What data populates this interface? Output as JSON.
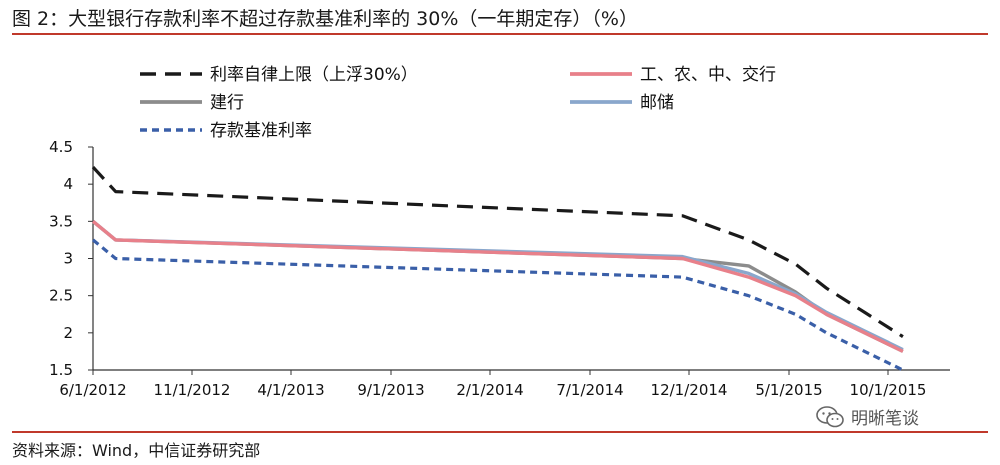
{
  "figure": {
    "title": "图 2：大型银行存款利率不超过存款基准利率的 30%（一年期定存）（%）",
    "source": "资料来源：Wind，中信证券研究部",
    "watermark": "明晰笔谈",
    "watermark_icon": "wechat-icon"
  },
  "chart_data": {
    "type": "line",
    "title": "",
    "xlabel": "",
    "ylabel": "",
    "x_ticks": [
      "6/1/2012",
      "11/1/2012",
      "4/1/2013",
      "9/1/2013",
      "2/1/2014",
      "7/1/2014",
      "12/1/2014",
      "5/1/2015",
      "10/1/2015"
    ],
    "y_ticks": [
      "1.5",
      "2",
      "2.5",
      "3",
      "3.5",
      "4",
      "4.5"
    ],
    "ylim": [
      1.5,
      4.5
    ],
    "xlim": [
      "2012-06-01",
      "2015-12-01"
    ],
    "grid": false,
    "legend_position": "top",
    "series": [
      {
        "name": "利率自律上限（上浮30%）",
        "color": "#1a1a1a",
        "style": "long-dash",
        "points": [
          [
            "2012-06-01",
            4.23
          ],
          [
            "2012-07-06",
            3.9
          ],
          [
            "2014-11-21",
            3.575
          ],
          [
            "2015-03-01",
            3.25
          ],
          [
            "2015-05-11",
            2.925
          ],
          [
            "2015-06-28",
            2.6
          ],
          [
            "2015-08-26",
            2.275
          ],
          [
            "2015-10-24",
            1.95
          ]
        ]
      },
      {
        "name": "工、农、中、交行",
        "color": "#e8808a",
        "style": "solid",
        "points": [
          [
            "2012-06-01",
            3.5
          ],
          [
            "2012-07-06",
            3.25
          ],
          [
            "2014-11-21",
            3.0
          ],
          [
            "2015-03-01",
            2.75
          ],
          [
            "2015-05-11",
            2.5
          ],
          [
            "2015-06-28",
            2.25
          ],
          [
            "2015-08-26",
            2.0
          ],
          [
            "2015-10-24",
            1.75
          ]
        ]
      },
      {
        "name": "建行",
        "color": "#8c8c8c",
        "style": "solid",
        "points": [
          [
            "2012-06-01",
            3.5
          ],
          [
            "2012-07-06",
            3.25
          ],
          [
            "2014-11-21",
            3.0
          ],
          [
            "2015-03-01",
            2.9
          ],
          [
            "2015-05-11",
            2.55
          ],
          [
            "2015-06-28",
            2.25
          ],
          [
            "2015-08-26",
            2.0
          ],
          [
            "2015-10-24",
            1.75
          ]
        ]
      },
      {
        "name": "邮储",
        "color": "#8aa7cc",
        "style": "solid",
        "points": [
          [
            "2012-06-01",
            3.5
          ],
          [
            "2012-07-06",
            3.25
          ],
          [
            "2014-11-21",
            3.025
          ],
          [
            "2015-03-01",
            2.8
          ],
          [
            "2015-05-11",
            2.525
          ],
          [
            "2015-06-28",
            2.275
          ],
          [
            "2015-08-26",
            2.025
          ],
          [
            "2015-10-24",
            1.775
          ]
        ]
      },
      {
        "name": "存款基准利率",
        "color": "#3a5fa8",
        "style": "short-dash",
        "points": [
          [
            "2012-06-01",
            3.25
          ],
          [
            "2012-07-06",
            3.0
          ],
          [
            "2014-11-21",
            2.75
          ],
          [
            "2015-03-01",
            2.5
          ],
          [
            "2015-05-11",
            2.25
          ],
          [
            "2015-06-28",
            2.0
          ],
          [
            "2015-08-26",
            1.75
          ],
          [
            "2015-10-24",
            1.5
          ]
        ]
      }
    ]
  }
}
